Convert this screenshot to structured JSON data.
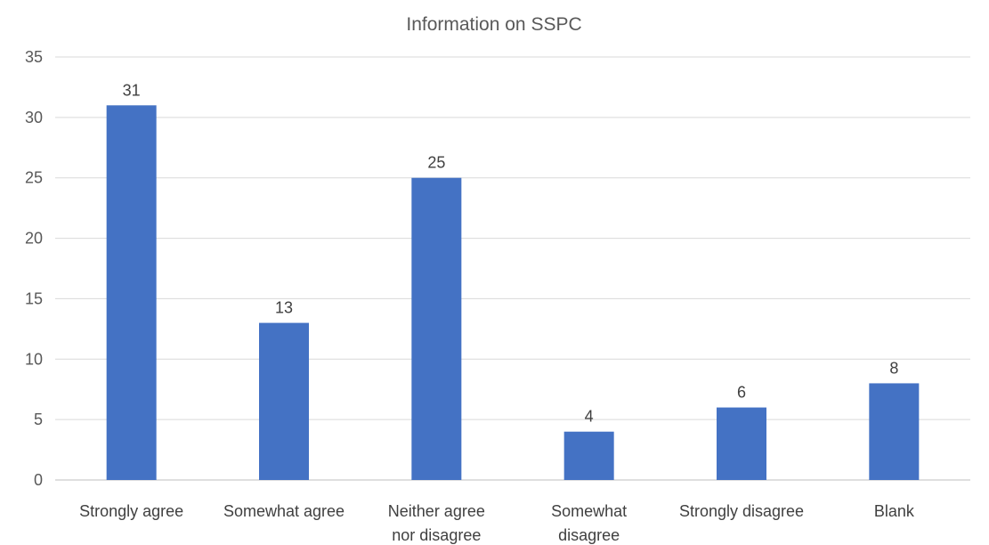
{
  "chart_data": {
    "type": "bar",
    "title": "Information on SSPC",
    "xlabel": "",
    "ylabel": "",
    "categories": [
      [
        "Strongly agree"
      ],
      [
        "Somewhat agree"
      ],
      [
        "Neither agree",
        "nor disagree"
      ],
      [
        "Somewhat",
        "disagree"
      ],
      [
        "Strongly disagree"
      ],
      [
        "Blank"
      ]
    ],
    "values": [
      31,
      13,
      25,
      4,
      6,
      8
    ],
    "data_labels": [
      "31",
      "13",
      "25",
      "4",
      "6",
      "8"
    ],
    "ylim": [
      0,
      35
    ],
    "y_ticks": [
      0,
      5,
      10,
      15,
      20,
      25,
      30,
      35
    ],
    "grid": true,
    "legend": "none",
    "bar_color": "#4472C4"
  }
}
